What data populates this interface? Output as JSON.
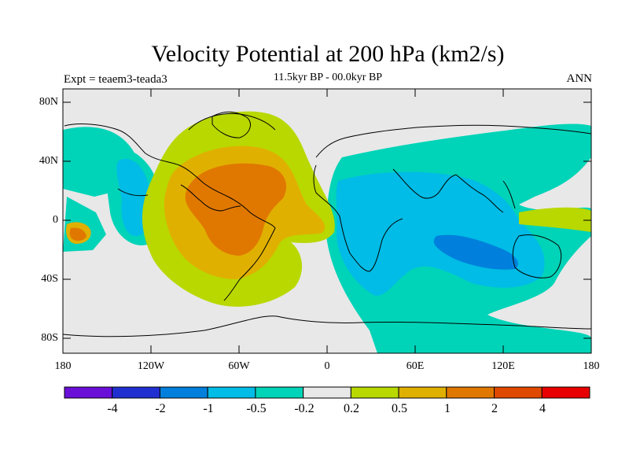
{
  "title": "Velocity Potential at 200 hPa (km2/s)",
  "subtitle": "11.5kyr BP - 00.0kyr BP",
  "left_label": "Expt = teaem3-teada3",
  "right_label": "ANN",
  "y_ticks": [
    "80N",
    "40N",
    "0",
    "40S",
    "80S"
  ],
  "x_ticks": [
    "180",
    "120W",
    "60W",
    "0",
    "60E",
    "120E",
    "180"
  ],
  "colorbar": {
    "colors": [
      "#6a0fd8",
      "#2030d0",
      "#0080dc",
      "#00bce6",
      "#00d4b8",
      "#e8e8e8",
      "#b8d800",
      "#e0b000",
      "#e07800",
      "#e04a00",
      "#e80000"
    ],
    "labels": [
      "-4",
      "-2",
      "-1",
      "-0.5",
      "-0.2",
      "0.2",
      "0.5",
      "1",
      "2",
      "4"
    ]
  },
  "fill_colors": {
    "land_ocean_neutral": "#e8e8e8",
    "neg_weak": "#00d4b8",
    "neg_mod": "#00bce6",
    "neg_strong": "#0080dc",
    "pos_weak": "#b8d800",
    "pos_mod": "#e0b000",
    "pos_strong": "#e07800"
  }
}
